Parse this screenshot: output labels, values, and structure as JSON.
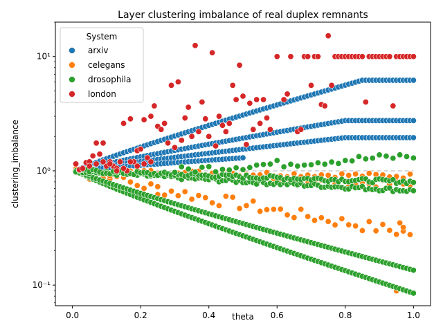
{
  "chart_data": {
    "type": "scatter",
    "title": "Layer clustering imbalance of real duplex remnants",
    "xlabel": "theta",
    "ylabel": "clustering_imbalance",
    "xlim": [
      -0.05,
      1.05
    ],
    "ylim": [
      0.066,
      20
    ],
    "yscale": "log",
    "grid": false,
    "xticks": [
      0.0,
      0.2,
      0.4,
      0.6,
      0.8,
      1.0
    ],
    "xtick_labels": [
      "0.0",
      "0.2",
      "0.4",
      "0.6",
      "0.8",
      "1.0"
    ],
    "yticks": [
      0.1,
      1,
      10
    ],
    "ytick_labels": [
      "10⁻¹",
      "10⁰",
      "10¹"
    ],
    "reference_line": {
      "y": 1,
      "color": "#c8c8c8",
      "style": "dashed"
    },
    "legend": {
      "title": "System",
      "placement": "top-left"
    },
    "series": [
      {
        "name": "arxiv",
        "color": "#1f77b4",
        "bands": [
          {
            "start": 1.0,
            "end": 6.2,
            "step": 0.01,
            "theta_start": 0.01,
            "theta_end": 1.0,
            "saturate_at": 0.85
          },
          {
            "start": 1.0,
            "end": 2.75,
            "step": 0.01,
            "theta_start": 0.01,
            "theta_end": 1.0,
            "saturate_at": 0.8
          },
          {
            "start": 1.0,
            "end": 1.95,
            "step": 0.01,
            "theta_start": 0.01,
            "theta_end": 1.0,
            "saturate_at": 0.8
          },
          {
            "start": 1.0,
            "end": 1.3,
            "step": 0.01,
            "theta_start": 0.01,
            "theta_end": 0.5,
            "saturate_at": 0.5
          }
        ]
      },
      {
        "name": "celegans",
        "color": "#ff7f0e",
        "bands": [
          {
            "start": 1.0,
            "end": 0.28,
            "step": 0.02,
            "theta_start": 0.01,
            "theta_end": 1.0,
            "saturate_at": 1.0,
            "noise": 0.12
          },
          {
            "start": 1.0,
            "end": 0.75,
            "step": 0.02,
            "theta_start": 0.01,
            "theta_end": 1.0,
            "saturate_at": 1.0,
            "noise": 0.08
          },
          {
            "start": 1.0,
            "end": 0.9,
            "step": 0.02,
            "theta_start": 0.01,
            "theta_end": 1.0,
            "saturate_at": 1.0,
            "noise": 0.05
          }
        ],
        "extra_points": [
          [
            0.95,
            0.089
          ],
          [
            0.96,
            0.35
          ],
          [
            0.97,
            0.32
          ],
          [
            0.25,
            0.62
          ]
        ]
      },
      {
        "name": "drosophila",
        "color": "#2ca02c",
        "bands": [
          {
            "start": 1.0,
            "end": 0.085,
            "step": 0.01,
            "theta_start": 0.01,
            "theta_end": 1.0,
            "saturate_at": 1.0
          },
          {
            "start": 1.0,
            "end": 0.135,
            "step": 0.01,
            "theta_start": 0.01,
            "theta_end": 1.0,
            "saturate_at": 1.0
          },
          {
            "start": 1.0,
            "end": 0.67,
            "step": 0.01,
            "theta_start": 0.01,
            "theta_end": 1.0,
            "saturate_at": 1.0,
            "noise": 0.04
          },
          {
            "start": 1.0,
            "end": 0.8,
            "step": 0.01,
            "theta_start": 0.01,
            "theta_end": 1.0,
            "saturate_at": 1.0,
            "noise": 0.04
          },
          {
            "start": 1.0,
            "end": 1.35,
            "step": 0.02,
            "theta_start": 0.3,
            "theta_end": 1.0,
            "saturate_at": 1.0,
            "noise": 0.08
          }
        ]
      },
      {
        "name": "london",
        "color": "#d62728",
        "points": [
          [
            0.01,
            1.15
          ],
          [
            0.02,
            1.02
          ],
          [
            0.03,
            1.05
          ],
          [
            0.04,
            1.18
          ],
          [
            0.05,
            1.2
          ],
          [
            0.06,
            1.35
          ],
          [
            0.07,
            1.75
          ],
          [
            0.08,
            1.4
          ],
          [
            0.09,
            1.75
          ],
          [
            0.1,
            1.1
          ],
          [
            0.11,
            1.2
          ],
          [
            0.12,
            1.1
          ],
          [
            0.13,
            1.05
          ],
          [
            0.14,
            1.2
          ],
          [
            0.15,
            2.6
          ],
          [
            0.16,
            1.0
          ],
          [
            0.17,
            2.85
          ],
          [
            0.18,
            1.2
          ],
          [
            0.19,
            1.5
          ],
          [
            0.2,
            1.55
          ],
          [
            0.21,
            2.8
          ],
          [
            0.22,
            1.3
          ],
          [
            0.23,
            3.0
          ],
          [
            0.24,
            3.7
          ],
          [
            0.25,
            2.45
          ],
          [
            0.26,
            2.3
          ],
          [
            0.27,
            2.6
          ],
          [
            0.28,
            1.75
          ],
          [
            0.29,
            5.6
          ],
          [
            0.3,
            1.6
          ],
          [
            0.31,
            6.0
          ],
          [
            0.32,
            1.85
          ],
          [
            0.33,
            2.9
          ],
          [
            0.34,
            3.6
          ],
          [
            0.35,
            2.0
          ],
          [
            0.36,
            12.5
          ],
          [
            0.37,
            2.2
          ],
          [
            0.38,
            4.0
          ],
          [
            0.39,
            2.85
          ],
          [
            0.4,
            2.0
          ],
          [
            0.41,
            10.8
          ],
          [
            0.42,
            1.65
          ],
          [
            0.43,
            3.0
          ],
          [
            0.44,
            2.5
          ],
          [
            0.45,
            2.2
          ],
          [
            0.46,
            2.6
          ],
          [
            0.47,
            5.6
          ],
          [
            0.48,
            4.2
          ],
          [
            0.49,
            8.4
          ],
          [
            0.5,
            4.5
          ],
          [
            0.51,
            1.7
          ],
          [
            0.52,
            3.9
          ],
          [
            0.53,
            2.3
          ],
          [
            0.54,
            4.2
          ],
          [
            0.55,
            2.6
          ],
          [
            0.56,
            4.2
          ],
          [
            0.57,
            2.9
          ],
          [
            0.58,
            2.3
          ],
          [
            0.6,
            10.0
          ],
          [
            0.62,
            4.2
          ],
          [
            0.63,
            4.7
          ],
          [
            0.64,
            10.0
          ],
          [
            0.66,
            2.2
          ],
          [
            0.67,
            2.3
          ],
          [
            0.68,
            10.0
          ],
          [
            0.69,
            10.0
          ],
          [
            0.7,
            5.6
          ],
          [
            0.71,
            10.0
          ],
          [
            0.72,
            10.0
          ],
          [
            0.73,
            3.8
          ],
          [
            0.74,
            3.7
          ],
          [
            0.75,
            15.2
          ],
          [
            0.76,
            5.6
          ],
          [
            0.77,
            10.0
          ],
          [
            0.78,
            10.0
          ],
          [
            0.79,
            10.0
          ],
          [
            0.8,
            10.0
          ],
          [
            0.81,
            10.0
          ],
          [
            0.82,
            10.0
          ],
          [
            0.83,
            10.0
          ],
          [
            0.84,
            10.0
          ],
          [
            0.85,
            10.0
          ],
          [
            0.86,
            4.0
          ],
          [
            0.87,
            10.0
          ],
          [
            0.88,
            10.0
          ],
          [
            0.89,
            10.0
          ],
          [
            0.9,
            10.0
          ],
          [
            0.91,
            10.0
          ],
          [
            0.92,
            10.0
          ],
          [
            0.93,
            10.0
          ],
          [
            0.94,
            3.7
          ],
          [
            0.95,
            10.0
          ],
          [
            0.96,
            10.0
          ],
          [
            0.97,
            10.0
          ],
          [
            0.98,
            10.0
          ],
          [
            0.99,
            10.0
          ],
          [
            1.0,
            10.0
          ],
          [
            0.05,
            1.1
          ],
          [
            0.07,
            1.15
          ],
          [
            0.09,
            1.2
          ],
          [
            0.11,
            1.15
          ],
          [
            0.13,
            1.0
          ],
          [
            0.15,
            1.05
          ],
          [
            0.17,
            1.2
          ],
          [
            0.19,
            1.1
          ],
          [
            0.21,
            1.15
          ],
          [
            0.23,
            1.2
          ]
        ]
      }
    ]
  }
}
